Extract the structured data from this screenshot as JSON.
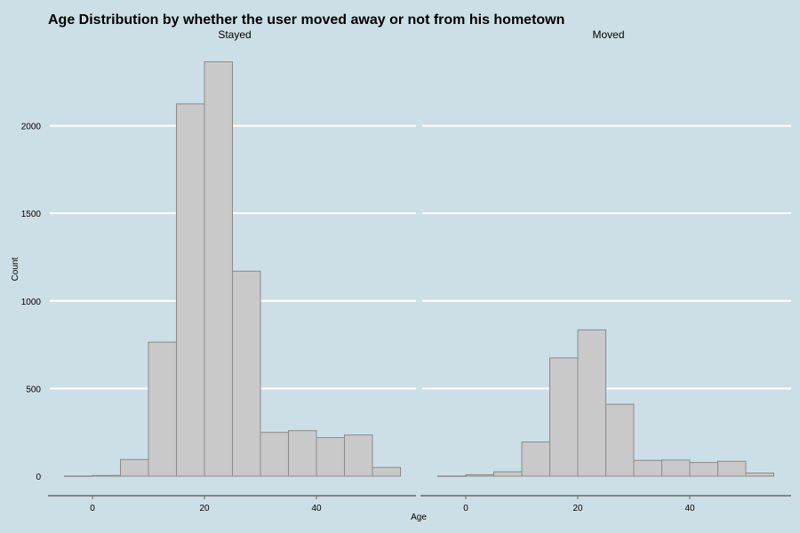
{
  "chart_data": {
    "type": "bar",
    "title": "Age Distribution by whether the user moved away or not from his hometown",
    "xlabel": "Age",
    "ylabel": "Count",
    "xlim": [
      -7,
      58
    ],
    "ylim": [
      -50,
      2400
    ],
    "xticks": [
      0,
      20,
      40
    ],
    "yticks": [
      0,
      500,
      1000,
      1500,
      2000
    ],
    "bin_width": 5,
    "grid": "horizontal",
    "colors": {
      "background": "#cddfe6",
      "bar_fill": "#c9c9c9",
      "bar_stroke": "#8a8a8a",
      "grid": "#ffffff",
      "axis": "#666666"
    },
    "panels": [
      {
        "name": "Stayed",
        "bins": [
          {
            "x0": -5,
            "x1": 0,
            "count": 1
          },
          {
            "x0": 0,
            "x1": 5,
            "count": 4
          },
          {
            "x0": 5,
            "x1": 10,
            "count": 95
          },
          {
            "x0": 10,
            "x1": 15,
            "count": 765
          },
          {
            "x0": 15,
            "x1": 20,
            "count": 2125
          },
          {
            "x0": 20,
            "x1": 25,
            "count": 2365
          },
          {
            "x0": 25,
            "x1": 30,
            "count": 1170
          },
          {
            "x0": 30,
            "x1": 35,
            "count": 250
          },
          {
            "x0": 35,
            "x1": 40,
            "count": 260
          },
          {
            "x0": 40,
            "x1": 45,
            "count": 220
          },
          {
            "x0": 45,
            "x1": 50,
            "count": 235
          },
          {
            "x0": 50,
            "x1": 55,
            "count": 50
          }
        ]
      },
      {
        "name": "Moved",
        "bins": [
          {
            "x0": -5,
            "x1": 0,
            "count": 1
          },
          {
            "x0": 0,
            "x1": 5,
            "count": 8
          },
          {
            "x0": 5,
            "x1": 10,
            "count": 25
          },
          {
            "x0": 10,
            "x1": 15,
            "count": 195
          },
          {
            "x0": 15,
            "x1": 20,
            "count": 675
          },
          {
            "x0": 20,
            "x1": 25,
            "count": 835
          },
          {
            "x0": 25,
            "x1": 30,
            "count": 410
          },
          {
            "x0": 30,
            "x1": 35,
            "count": 90
          },
          {
            "x0": 35,
            "x1": 40,
            "count": 92
          },
          {
            "x0": 40,
            "x1": 45,
            "count": 78
          },
          {
            "x0": 45,
            "x1": 50,
            "count": 85
          },
          {
            "x0": 50,
            "x1": 55,
            "count": 18
          }
        ]
      }
    ]
  }
}
